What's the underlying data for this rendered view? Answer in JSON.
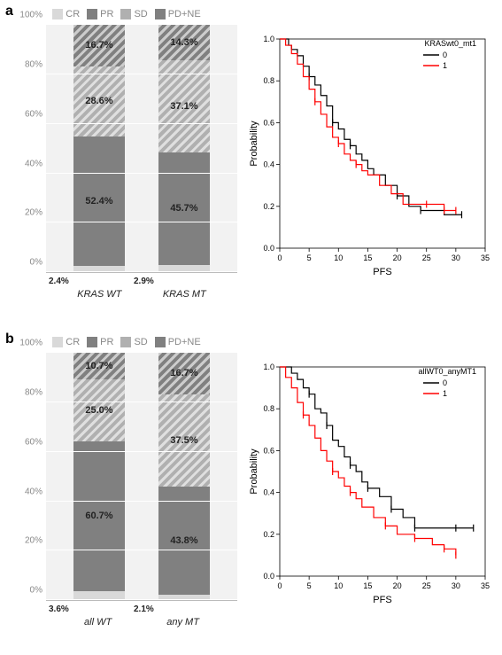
{
  "legend_items": [
    {
      "label": "CR",
      "color": "#d9d9d9",
      "hatch": false
    },
    {
      "label": "PR",
      "color": "#808080",
      "hatch": false
    },
    {
      "label": "SD",
      "color": "#b0b0b0",
      "hatch": true
    },
    {
      "label": "PD+NE",
      "color": "#808080",
      "hatch": true
    }
  ],
  "y_ticks": [
    "0%",
    "20%",
    "40%",
    "60%",
    "80%",
    "100%"
  ],
  "panel_a": {
    "label": "a",
    "bars": [
      {
        "name": "KRAS WT",
        "cr_label": "2.4%",
        "segs": [
          {
            "key": "CR",
            "value": 2.4,
            "color": "#d9d9d9",
            "hatch": false,
            "label": ""
          },
          {
            "key": "PR",
            "value": 52.4,
            "color": "#808080",
            "hatch": false,
            "label": "52.4%"
          },
          {
            "key": "SD",
            "value": 28.6,
            "color": "#b0b0b0",
            "hatch": true,
            "label": "28.6%"
          },
          {
            "key": "PD+NE",
            "value": 16.7,
            "color": "#808080",
            "hatch": true,
            "label": "16.7%"
          }
        ]
      },
      {
        "name": "KRAS MT",
        "cr_label": "2.9%",
        "segs": [
          {
            "key": "CR",
            "value": 2.9,
            "color": "#d9d9d9",
            "hatch": false,
            "label": ""
          },
          {
            "key": "PR",
            "value": 45.7,
            "color": "#808080",
            "hatch": false,
            "label": "45.7%"
          },
          {
            "key": "SD",
            "value": 37.1,
            "color": "#b0b0b0",
            "hatch": true,
            "label": "37.1%"
          },
          {
            "key": "PD+NE",
            "value": 14.3,
            "color": "#808080",
            "hatch": true,
            "label": "14.3%"
          }
        ]
      }
    ],
    "km": {
      "title": "KRASwt0_mt1",
      "ylabel": "Probability",
      "xlabel": "PFS",
      "xlim": [
        0,
        35
      ],
      "xticks": [
        0,
        5,
        10,
        15,
        20,
        25,
        30,
        35
      ],
      "ylim": [
        0,
        1.0
      ],
      "yticks": [
        0.0,
        0.2,
        0.4,
        0.6,
        0.8,
        1.0
      ],
      "series": [
        {
          "name": "0",
          "color": "#000000",
          "points": [
            [
              0,
              1.0
            ],
            [
              1.5,
              0.97
            ],
            [
              2,
              0.95
            ],
            [
              3,
              0.92
            ],
            [
              4,
              0.87
            ],
            [
              5,
              0.82
            ],
            [
              6,
              0.78
            ],
            [
              7,
              0.73
            ],
            [
              8,
              0.68
            ],
            [
              9,
              0.6
            ],
            [
              10,
              0.57
            ],
            [
              11,
              0.52
            ],
            [
              12,
              0.49
            ],
            [
              13,
              0.45
            ],
            [
              14,
              0.42
            ],
            [
              15,
              0.38
            ],
            [
              16,
              0.35
            ],
            [
              18,
              0.3
            ],
            [
              20,
              0.25
            ],
            [
              22,
              0.2
            ],
            [
              24,
              0.18
            ],
            [
              28,
              0.16
            ],
            [
              31,
              0.16
            ]
          ],
          "censors": [
            [
              5,
              0.82
            ],
            [
              9,
              0.6
            ],
            [
              12,
              0.49
            ],
            [
              20,
              0.25
            ],
            [
              24,
              0.18
            ],
            [
              31,
              0.16
            ]
          ]
        },
        {
          "name": "1",
          "color": "#ff0000",
          "points": [
            [
              0,
              1.0
            ],
            [
              1,
              0.97
            ],
            [
              2,
              0.93
            ],
            [
              3,
              0.88
            ],
            [
              4,
              0.82
            ],
            [
              5,
              0.76
            ],
            [
              6,
              0.7
            ],
            [
              7,
              0.64
            ],
            [
              8,
              0.58
            ],
            [
              9,
              0.53
            ],
            [
              10,
              0.5
            ],
            [
              11,
              0.45
            ],
            [
              12,
              0.42
            ],
            [
              13,
              0.4
            ],
            [
              14,
              0.37
            ],
            [
              15,
              0.35
            ],
            [
              17,
              0.3
            ],
            [
              19,
              0.26
            ],
            [
              21,
              0.21
            ],
            [
              23,
              0.21
            ],
            [
              26,
              0.21
            ],
            [
              28,
              0.18
            ],
            [
              30,
              0.18
            ]
          ],
          "censors": [
            [
              6,
              0.7
            ],
            [
              10,
              0.5
            ],
            [
              13,
              0.4
            ],
            [
              25,
              0.21
            ],
            [
              28,
              0.18
            ],
            [
              30,
              0.18
            ]
          ]
        }
      ]
    }
  },
  "panel_b": {
    "label": "b",
    "bars": [
      {
        "name": "all WT",
        "cr_label": "3.6%",
        "segs": [
          {
            "key": "CR",
            "value": 3.6,
            "color": "#d9d9d9",
            "hatch": false,
            "label": ""
          },
          {
            "key": "PR",
            "value": 60.7,
            "color": "#808080",
            "hatch": false,
            "label": "60.7%"
          },
          {
            "key": "SD",
            "value": 25.0,
            "color": "#b0b0b0",
            "hatch": true,
            "label": "25.0%"
          },
          {
            "key": "PD+NE",
            "value": 10.7,
            "color": "#808080",
            "hatch": true,
            "label": "10.7%"
          }
        ]
      },
      {
        "name": "any MT",
        "cr_label": "2.1%",
        "segs": [
          {
            "key": "CR",
            "value": 2.1,
            "color": "#d9d9d9",
            "hatch": false,
            "label": ""
          },
          {
            "key": "PR",
            "value": 43.8,
            "color": "#808080",
            "hatch": false,
            "label": "43.8%"
          },
          {
            "key": "SD",
            "value": 37.5,
            "color": "#b0b0b0",
            "hatch": true,
            "label": "37.5%"
          },
          {
            "key": "PD+NE",
            "value": 16.7,
            "color": "#808080",
            "hatch": true,
            "label": "16.7%"
          }
        ]
      }
    ],
    "km": {
      "title": "allWT0_anyMT1",
      "ylabel": "Probability",
      "xlabel": "PFS",
      "xlim": [
        0,
        35
      ],
      "xticks": [
        0,
        5,
        10,
        15,
        20,
        25,
        30,
        35
      ],
      "ylim": [
        0,
        1.0
      ],
      "yticks": [
        0.0,
        0.2,
        0.4,
        0.6,
        0.8,
        1.0
      ],
      "series": [
        {
          "name": "0",
          "color": "#000000",
          "points": [
            [
              0,
              1.0
            ],
            [
              2,
              0.97
            ],
            [
              3,
              0.94
            ],
            [
              4,
              0.9
            ],
            [
              5,
              0.87
            ],
            [
              6,
              0.8
            ],
            [
              7,
              0.78
            ],
            [
              8,
              0.72
            ],
            [
              9,
              0.65
            ],
            [
              10,
              0.62
            ],
            [
              11,
              0.57
            ],
            [
              12,
              0.53
            ],
            [
              13,
              0.5
            ],
            [
              14,
              0.45
            ],
            [
              15,
              0.42
            ],
            [
              17,
              0.38
            ],
            [
              19,
              0.32
            ],
            [
              21,
              0.28
            ],
            [
              23,
              0.23
            ],
            [
              26,
              0.23
            ],
            [
              30,
              0.23
            ],
            [
              33,
              0.23
            ]
          ],
          "censors": [
            [
              5,
              0.87
            ],
            [
              8,
              0.72
            ],
            [
              12,
              0.53
            ],
            [
              15,
              0.42
            ],
            [
              19,
              0.32
            ],
            [
              23,
              0.23
            ],
            [
              30,
              0.23
            ],
            [
              33,
              0.23
            ]
          ]
        },
        {
          "name": "1",
          "color": "#ff0000",
          "points": [
            [
              0,
              1.0
            ],
            [
              1,
              0.95
            ],
            [
              2,
              0.9
            ],
            [
              3,
              0.83
            ],
            [
              4,
              0.77
            ],
            [
              5,
              0.72
            ],
            [
              6,
              0.66
            ],
            [
              7,
              0.6
            ],
            [
              8,
              0.55
            ],
            [
              9,
              0.5
            ],
            [
              10,
              0.47
            ],
            [
              11,
              0.43
            ],
            [
              12,
              0.4
            ],
            [
              13,
              0.37
            ],
            [
              14,
              0.33
            ],
            [
              16,
              0.28
            ],
            [
              18,
              0.24
            ],
            [
              20,
              0.2
            ],
            [
              23,
              0.18
            ],
            [
              26,
              0.15
            ],
            [
              28,
              0.13
            ],
            [
              30,
              0.1
            ]
          ],
          "censors": [
            [
              4,
              0.77
            ],
            [
              9,
              0.5
            ],
            [
              12,
              0.4
            ],
            [
              18,
              0.24
            ],
            [
              23,
              0.18
            ],
            [
              28,
              0.13
            ],
            [
              30,
              0.1
            ]
          ]
        }
      ]
    }
  }
}
